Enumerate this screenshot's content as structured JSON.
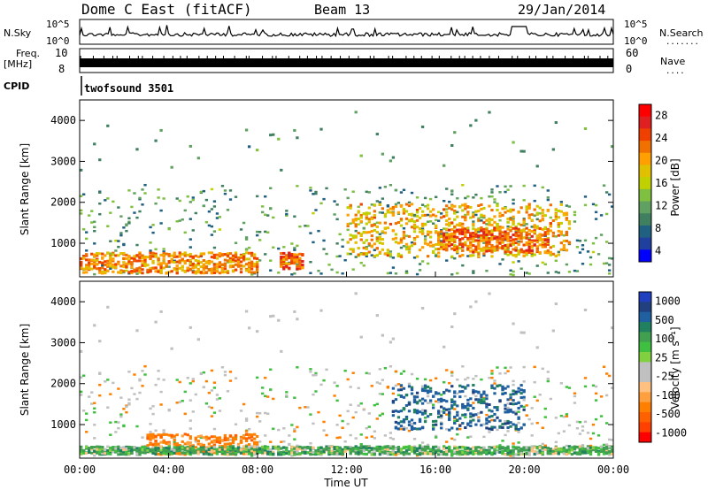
{
  "header": {
    "title": "Dome C East (fitACF)",
    "beam": "Beam 13",
    "date": "29/Jan/2014"
  },
  "noise_panel": {
    "left_label": "N.Sky",
    "left_ticks": [
      "10^5",
      "10^0"
    ],
    "right_ticks": [
      "10^5",
      "10^0"
    ],
    "right_label": "N.Search",
    "right_legend_line": "......."
  },
  "freq_panel": {
    "left_label_line1": "Freq.",
    "left_label_line2": "[MHz]",
    "left_ticks": [
      "10",
      "8"
    ],
    "right_ticks": [
      "60",
      "0"
    ],
    "right_label": "Nave",
    "right_legend_line": "...."
  },
  "cpid": {
    "label": "CPID",
    "value": "twofsound 3501"
  },
  "time_axis": {
    "label": "Time UT",
    "ticks": [
      "00:00",
      "04:00",
      "08:00",
      "12:00",
      "16:00",
      "20:00",
      "00:00"
    ]
  },
  "range_axis": {
    "label": "Slant Range [km]",
    "ticks": [
      "1000",
      "2000",
      "3000",
      "4000"
    ]
  },
  "power_colorbar": {
    "label": "Power [dB]",
    "ticks": [
      "28",
      "24",
      "20",
      "16",
      "12",
      "8",
      "4"
    ],
    "colors": [
      "#ff0000",
      "#e02020",
      "#f04000",
      "#f07000",
      "#ffa000",
      "#e0c000",
      "#c0d000",
      "#80c040",
      "#60a060",
      "#408060",
      "#206080",
      "#2040a0",
      "#0000ff"
    ]
  },
  "velocity_colorbar": {
    "label": "Velocity [m s⁻¹]",
    "ticks": [
      "1000",
      "500",
      "100",
      "25",
      "-25",
      "-100",
      "-500",
      "-1000"
    ],
    "colors": [
      "#2040c0",
      "#204080",
      "#2060a0",
      "#208060",
      "#40a050",
      "#40c040",
      "#80d040",
      "#c0c0c0",
      "#c0c0c0",
      "#ffc080",
      "#ffa040",
      "#ff8000",
      "#ff6000",
      "#ff4000",
      "#ff0000"
    ]
  },
  "chart_data": [
    {
      "type": "line",
      "title": "N.Sky",
      "x": [
        "00:00",
        "04:00",
        "08:00",
        "12:00",
        "16:00",
        "20:00",
        "00:00"
      ],
      "ylabel": "N.Sky",
      "yscale": "log",
      "ylim": [
        1,
        100000
      ]
    },
    {
      "type": "line",
      "title": "Freq.",
      "x": [
        "00:00",
        "04:00",
        "08:00",
        "12:00",
        "16:00",
        "20:00",
        "00:00"
      ],
      "ylabel": "[MHz]",
      "ylim": [
        8,
        10
      ]
    },
    {
      "type": "heatmap",
      "title": "Power [dB]",
      "xlabel": "Time UT",
      "ylabel": "Slant Range [km]",
      "x_range": [
        "00:00",
        "00:00"
      ],
      "ylim": [
        180,
        4500
      ],
      "colorbar_range": [
        0,
        30
      ],
      "features": [
        {
          "start": "00:00",
          "end": "08:00",
          "range_low": 300,
          "range_high": 800,
          "power": 26
        },
        {
          "start": "09:00",
          "end": "10:00",
          "range_low": 400,
          "range_high": 800,
          "power": 28
        },
        {
          "start": "12:00",
          "end": "22:00",
          "range_low": 700,
          "range_high": 2000,
          "power": 24
        },
        {
          "start": "16:00",
          "end": "21:00",
          "range_low": 800,
          "range_high": 1400,
          "power": 28
        }
      ]
    },
    {
      "type": "heatmap",
      "title": "Velocity",
      "xlabel": "Time UT",
      "ylabel": "Slant Range [km]",
      "x_range": [
        "00:00",
        "00:00"
      ],
      "ylim": [
        180,
        4500
      ],
      "colorbar_range": [
        -1000,
        1000
      ],
      "features": [
        {
          "start": "03:00",
          "end": "08:00",
          "range_low": 300,
          "range_high": 800,
          "velocity": -300
        },
        {
          "start": "14:00",
          "end": "20:00",
          "range_low": 900,
          "range_high": 2000,
          "velocity": 500
        },
        {
          "start": "00:00",
          "end": "24:00",
          "range_low": 300,
          "range_high": 500,
          "velocity": 100
        }
      ]
    }
  ]
}
